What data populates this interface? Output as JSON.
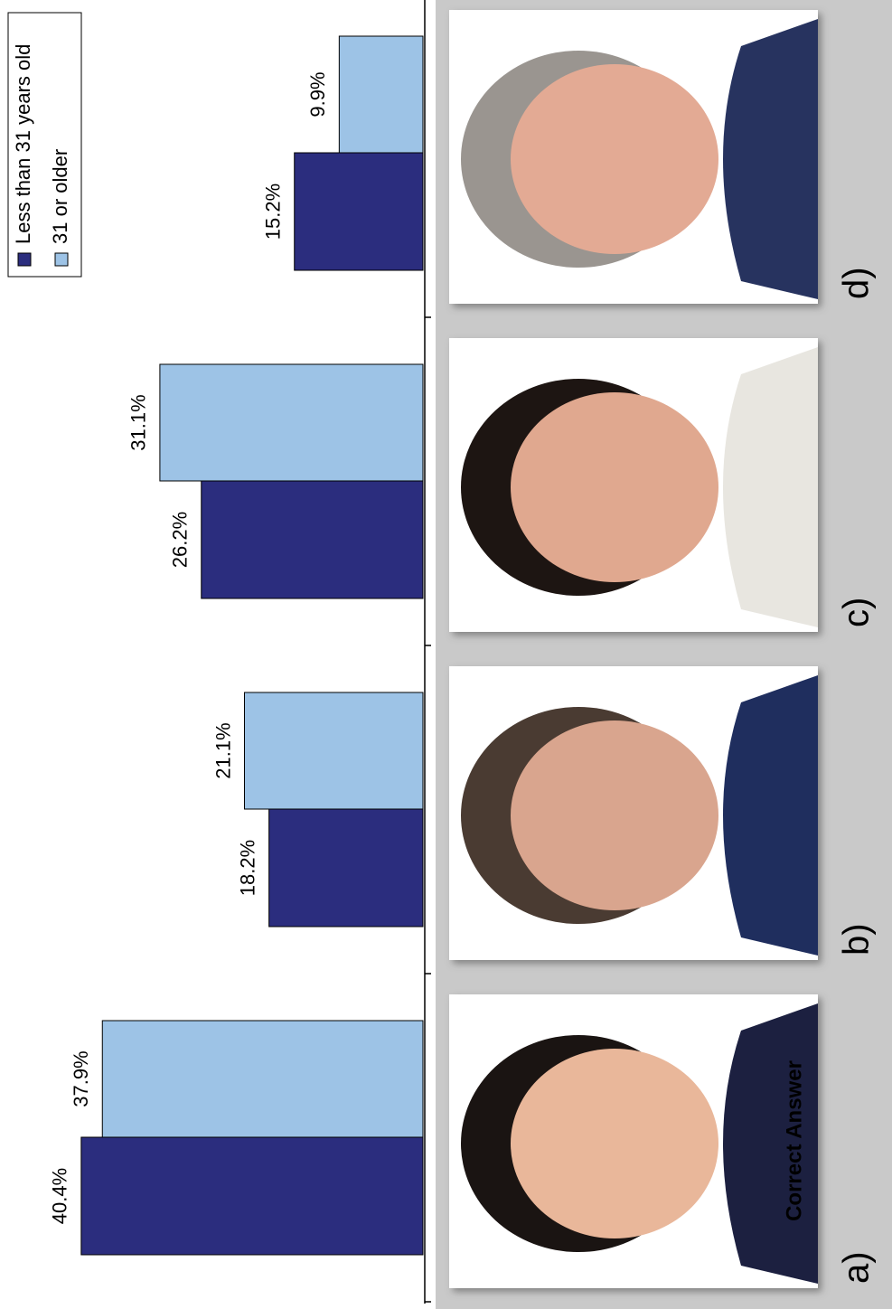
{
  "chart_data": {
    "type": "bar",
    "categories": [
      "a)",
      "b)",
      "c)",
      "d)"
    ],
    "series": [
      {
        "name": "Less than 31 years old",
        "color": "#2b2d7e",
        "values": [
          40.4,
          18.2,
          26.2,
          15.2
        ],
        "value_labels": [
          "40.4%",
          "18.2%",
          "26.2%",
          "15.2%"
        ]
      },
      {
        "name": "31 or older",
        "color": "#9dc3e6",
        "values": [
          37.9,
          21.1,
          31.1,
          9.9
        ],
        "value_labels": [
          "37.9%",
          "21.1%",
          "31.1%",
          "9.9%"
        ]
      }
    ],
    "ylim": [
      0,
      50
    ],
    "annotation": "Correct Answer"
  }
}
